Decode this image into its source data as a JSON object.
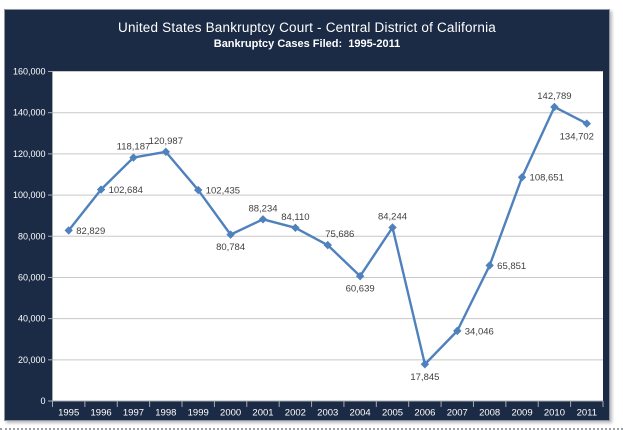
{
  "header": {
    "title": "United States Bankruptcy Court - Central District of California",
    "subtitle": "Bankruptcy Cases Filed:  1995-2011"
  },
  "chart_data": {
    "type": "line",
    "title": "United States Bankruptcy Court - Central District of California",
    "subtitle": "Bankruptcy Cases Filed:  1995-2011",
    "categories": [
      "1995",
      "1996",
      "1997",
      "1998",
      "1999",
      "2000",
      "2001",
      "2002",
      "2003",
      "2004",
      "2005",
      "2006",
      "2007",
      "2008",
      "2009",
      "2010",
      "2011"
    ],
    "values": [
      82829,
      102684,
      118187,
      120987,
      102435,
      80784,
      88234,
      84110,
      75686,
      60639,
      84244,
      17845,
      34046,
      65851,
      108651,
      142789,
      134702
    ],
    "value_labels": [
      "82,829",
      "102,684",
      "118,187",
      "120,987",
      "102,435",
      "80,784",
      "88,234",
      "84,110",
      "75,686",
      "60,639",
      "84,244",
      "17,845",
      "34,046",
      "65,851",
      "108,651",
      "142,789",
      "134,702"
    ],
    "label_placements": [
      "right",
      "right",
      "above",
      "above",
      "right",
      "below",
      "above",
      "above",
      "above-right",
      "below",
      "above",
      "below",
      "right",
      "right",
      "right",
      "above",
      "below-left"
    ],
    "xlabel": "",
    "ylabel": "",
    "ylim": [
      0,
      160000
    ],
    "ytick_step": 20000,
    "ytick_labels": [
      "0",
      "20,000",
      "40,000",
      "60,000",
      "80,000",
      "100,000",
      "120,000",
      "140,000",
      "160,000"
    ],
    "grid": true,
    "legend_position": "none",
    "marker": "diamond",
    "colors": {
      "panel_background": "#1b2a45",
      "plot_background": "#ffffff",
      "line": "#4f81bd",
      "marker": "#4f81bd",
      "gridline": "#c8c8c8",
      "axis": "#a5aab2",
      "tick_label": "#ffffff",
      "data_label": "#3f3f3f",
      "title": "#ffffff"
    }
  }
}
